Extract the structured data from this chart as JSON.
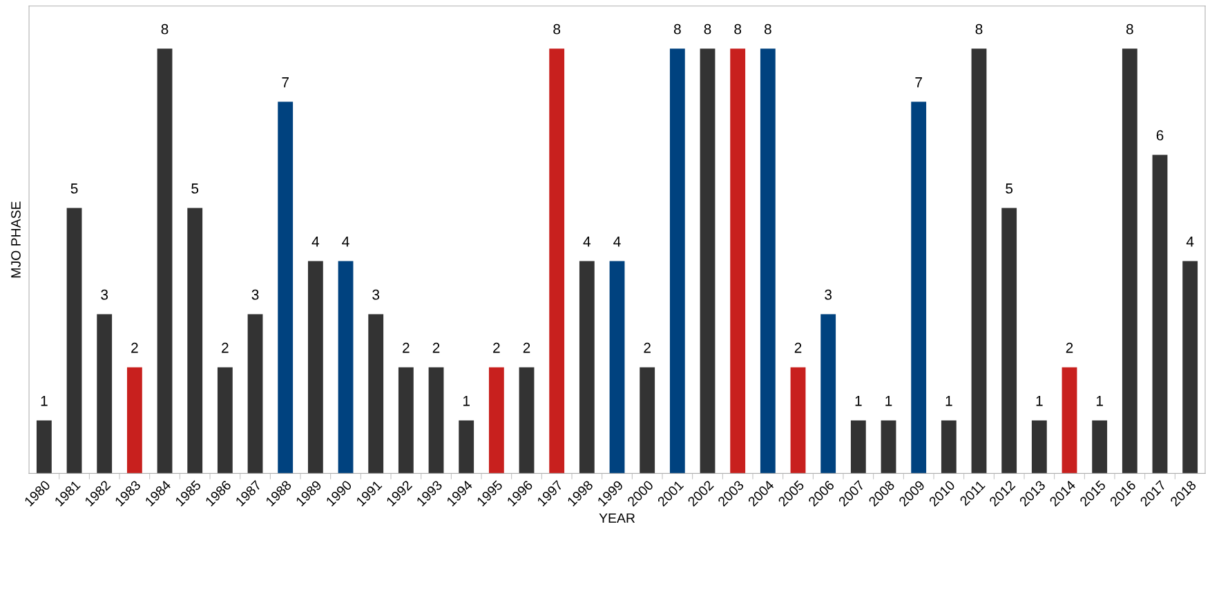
{
  "chart_data": {
    "type": "bar",
    "xlabel": "YEAR",
    "ylabel": "MJO PHASE",
    "categories": [
      "1980",
      "1981",
      "1982",
      "1983",
      "1984",
      "1985",
      "1986",
      "1987",
      "1988",
      "1989",
      "1990",
      "1991",
      "1992",
      "1993",
      "1994",
      "1995",
      "1996",
      "1997",
      "1998",
      "1999",
      "2000",
      "2001",
      "2002",
      "2003",
      "2004",
      "2005",
      "2006",
      "2007",
      "2008",
      "2009",
      "2010",
      "2011",
      "2012",
      "2013",
      "2014",
      "2015",
      "2016",
      "2017",
      "2018"
    ],
    "values": [
      1,
      5,
      3,
      2,
      8,
      5,
      2,
      3,
      7,
      4,
      4,
      3,
      2,
      2,
      1,
      2,
      2,
      8,
      4,
      4,
      2,
      8,
      8,
      8,
      8,
      2,
      3,
      1,
      1,
      7,
      1,
      8,
      5,
      1,
      2,
      1,
      8,
      6,
      4
    ],
    "colors": [
      "#333333",
      "#333333",
      "#333333",
      "#c8201e",
      "#333333",
      "#333333",
      "#333333",
      "#333333",
      "#00427f",
      "#333333",
      "#00427f",
      "#333333",
      "#333333",
      "#333333",
      "#333333",
      "#c8201e",
      "#333333",
      "#c8201e",
      "#333333",
      "#00427f",
      "#333333",
      "#00427f",
      "#333333",
      "#c8201e",
      "#00427f",
      "#c8201e",
      "#00427f",
      "#333333",
      "#333333",
      "#00427f",
      "#333333",
      "#333333",
      "#333333",
      "#333333",
      "#c8201e",
      "#333333",
      "#333333",
      "#333333",
      "#333333"
    ],
    "data_labels": true,
    "tick_labels": "x",
    "grid": false,
    "legend": false
  }
}
